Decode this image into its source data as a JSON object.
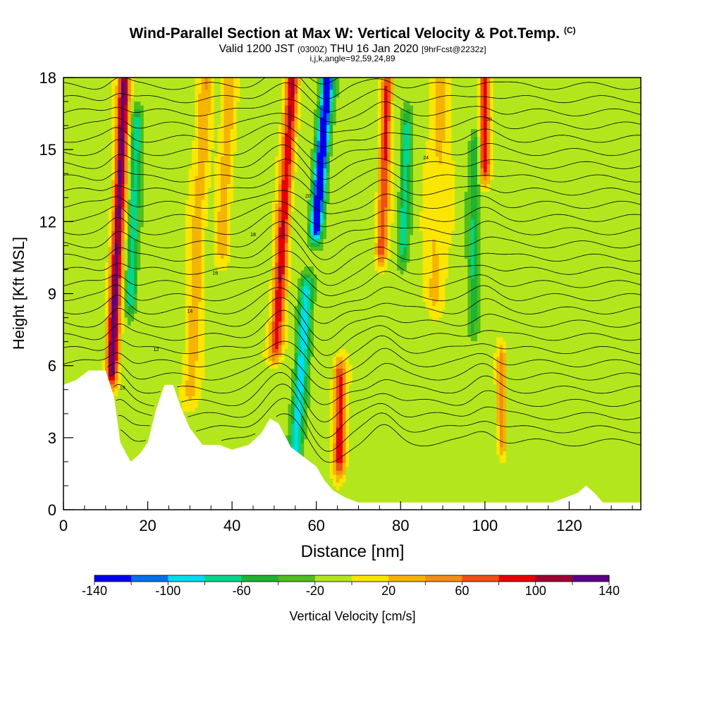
{
  "title": {
    "main": "Wind-Parallel Section at Max W: Vertical Velocity & Pot.Temp.",
    "copyright": "(C)",
    "valid_prefix": "Valid 1200 JST",
    "valid_z": "(0300Z)",
    "valid_date": "THU 16 Jan 2020",
    "forecast": "[9hrFcst@2232z]",
    "params": "i,j,k,angle=92,59,24,89"
  },
  "chart_data": {
    "type": "heatmap",
    "title": "Wind-Parallel Section at Max W: Vertical Velocity & Pot.Temp.",
    "xlabel": "Distance [nm]",
    "ylabel": "Height [Kft MSL]",
    "xlim": [
      0,
      137
    ],
    "ylim": [
      0,
      18
    ],
    "x_ticks": [
      "0",
      "20",
      "40",
      "60",
      "80",
      "100",
      "120"
    ],
    "y_ticks": [
      "0",
      "3",
      "6",
      "9",
      "12",
      "15",
      "18"
    ],
    "colorbar": {
      "label": "Vertical Velocity [cm/s]",
      "range": [
        -140,
        140
      ],
      "step": 20,
      "tick_labels": [
        "-140",
        "-100",
        "-60",
        "-20",
        "20",
        "60",
        "100",
        "140"
      ],
      "colors": [
        "#0000ee",
        "#0070ee",
        "#00dcf0",
        "#00d68c",
        "#1eb432",
        "#50be1e",
        "#b4e61e",
        "#fae600",
        "#f5b400",
        "#f58c14",
        "#f05014",
        "#e60000",
        "#a00032",
        "#5a0082"
      ]
    },
    "background_w": -10,
    "updrafts": [
      {
        "x": 11.5,
        "peak": 140,
        "z_low": 6.0,
        "z_high": 18,
        "width": 1.4,
        "tilt": 0.25
      },
      {
        "x": 50.5,
        "peak": 110,
        "z_low": 7.0,
        "z_high": 18,
        "width": 1.5,
        "tilt": 0.35
      },
      {
        "x": 65.5,
        "peak": 100,
        "z_low": 2.2,
        "z_high": 5.5,
        "width": 1.4,
        "tilt": 0.0
      },
      {
        "x": 75.5,
        "peak": 95,
        "z_low": 11.0,
        "z_high": 18,
        "width": 1.3,
        "tilt": 0.2
      },
      {
        "x": 100,
        "peak": 105,
        "z_low": 14.5,
        "z_high": 18,
        "width": 1.3,
        "tilt": 0.0
      },
      {
        "x": 104,
        "peak": 60,
        "z_low": 3.0,
        "z_high": 6.0,
        "width": 1.0,
        "tilt": 0.0
      },
      {
        "x": 30,
        "peak": 45,
        "z_low": 5.0,
        "z_high": 18,
        "width": 1.8,
        "tilt": 0.3
      },
      {
        "x": 38,
        "peak": 40,
        "z_low": 11.0,
        "z_high": 18,
        "width": 1.8,
        "tilt": 0.2
      },
      {
        "x": 88,
        "peak": 35,
        "z_low": 9.0,
        "z_high": 18,
        "width": 2.5,
        "tilt": 0.2
      }
    ],
    "downdrafts": [
      {
        "x": 60,
        "peak": -140,
        "z_low": 12.0,
        "z_high": 18,
        "width": 1.5,
        "tilt": 0.45
      },
      {
        "x": 16,
        "peak": -70,
        "z_low": 9.0,
        "z_high": 16,
        "width": 1.2,
        "tilt": 0.2
      },
      {
        "x": 55,
        "peak": -80,
        "z_low": 2.5,
        "z_high": 9.0,
        "width": 1.6,
        "tilt": 0.4
      },
      {
        "x": 80.5,
        "peak": -60,
        "z_low": 11.0,
        "z_high": 16,
        "width": 1.2,
        "tilt": 0.2
      },
      {
        "x": 97,
        "peak": -50,
        "z_low": 8.0,
        "z_high": 15,
        "width": 1.2,
        "tilt": 0.1
      }
    ],
    "terrain": [
      [
        0,
        5.2
      ],
      [
        3,
        5.4
      ],
      [
        6,
        5.8
      ],
      [
        10,
        5.8
      ],
      [
        12,
        4.7
      ],
      [
        13.5,
        2.8
      ],
      [
        15,
        2.3
      ],
      [
        16,
        2.0
      ],
      [
        18,
        2.3
      ],
      [
        20,
        2.8
      ],
      [
        22,
        4.2
      ],
      [
        24,
        5.2
      ],
      [
        26,
        5.2
      ],
      [
        28,
        4.2
      ],
      [
        30,
        3.4
      ],
      [
        33,
        2.7
      ],
      [
        37,
        2.7
      ],
      [
        40,
        2.5
      ],
      [
        44,
        2.7
      ],
      [
        47,
        3.2
      ],
      [
        49,
        3.8
      ],
      [
        51,
        3.6
      ],
      [
        54,
        2.6
      ],
      [
        57,
        2.2
      ],
      [
        60,
        1.8
      ],
      [
        62,
        1.2
      ],
      [
        64,
        0.8
      ],
      [
        67,
        0.5
      ],
      [
        70,
        0.3
      ],
      [
        116,
        0.3
      ],
      [
        122,
        0.7
      ],
      [
        124,
        1.0
      ],
      [
        126,
        0.7
      ],
      [
        128,
        0.3
      ],
      [
        137,
        0.3
      ]
    ],
    "theta_contours": {
      "count": 30,
      "wave_sources": [
        {
          "x": 13,
          "amp": 0.7,
          "sigma": 3
        },
        {
          "x": 52,
          "amp": 1.3,
          "sigma": 6
        },
        {
          "x": 62,
          "amp": -0.9,
          "sigma": 5
        },
        {
          "x": 76,
          "amp": 0.6,
          "sigma": 4
        },
        {
          "x": 100,
          "amp": 0.5,
          "sigma": 4
        }
      ],
      "annotated_values": [
        "10",
        "12",
        "14",
        "16",
        "18",
        "20",
        "24",
        "30"
      ]
    }
  }
}
